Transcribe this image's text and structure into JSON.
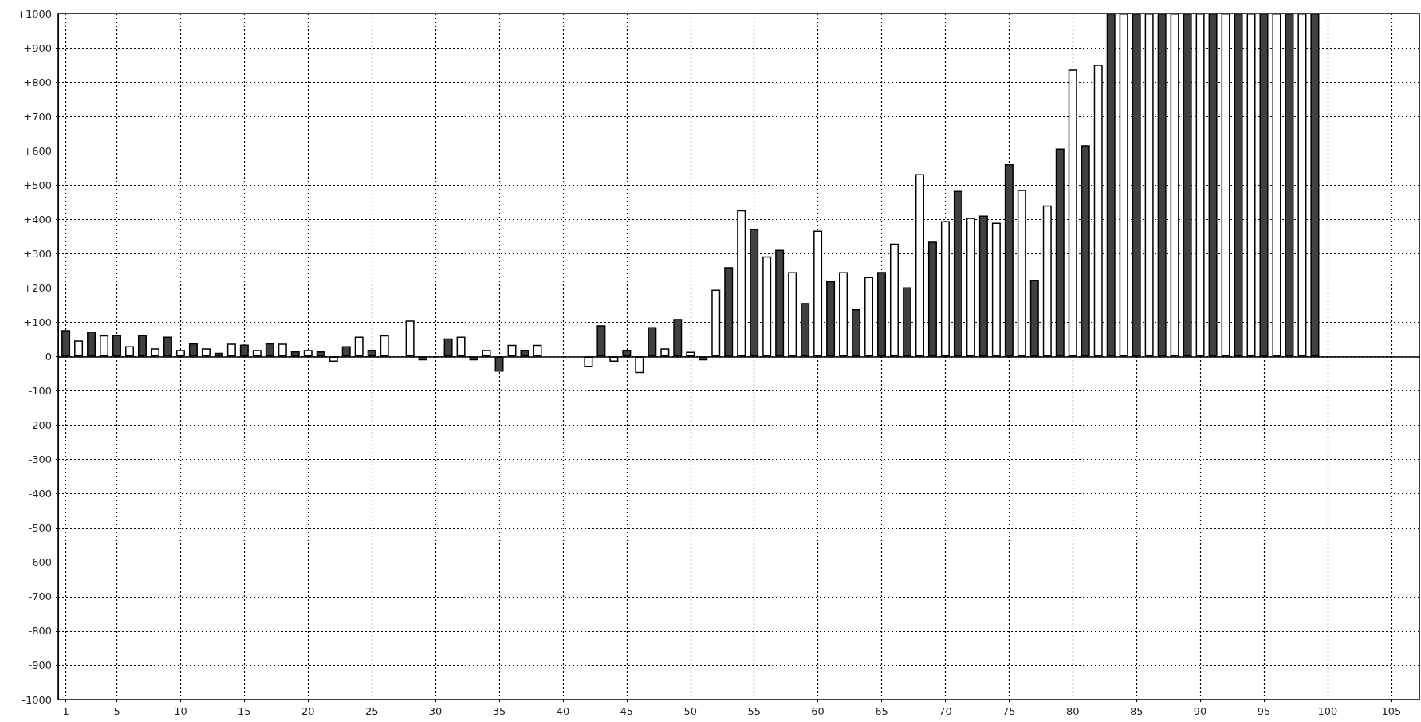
{
  "chart_data": {
    "type": "bar",
    "x": [
      1,
      2,
      3,
      4,
      5,
      6,
      7,
      8,
      9,
      10,
      11,
      12,
      13,
      14,
      15,
      16,
      17,
      18,
      19,
      20,
      21,
      22,
      23,
      24,
      25,
      26,
      27,
      28,
      29,
      30,
      31,
      32,
      33,
      34,
      35,
      36,
      37,
      38,
      39,
      40,
      41,
      42,
      43,
      44,
      45,
      46,
      47,
      48,
      49,
      50,
      51,
      52,
      53,
      54,
      55,
      56,
      57,
      58,
      59,
      60,
      61,
      62,
      63,
      64,
      65,
      66,
      67,
      68,
      69,
      70,
      71,
      72,
      73,
      74,
      75,
      76,
      77,
      78,
      79,
      80,
      81,
      82,
      83,
      84,
      85,
      86,
      87,
      88,
      89,
      90,
      91,
      92,
      93,
      94,
      95,
      96,
      97,
      98,
      99
    ],
    "values": [
      77,
      47,
      73,
      62,
      63,
      30,
      63,
      24,
      58,
      19,
      39,
      24,
      11,
      38,
      35,
      19,
      39,
      38,
      15,
      19,
      15,
      -15,
      30,
      58,
      20,
      62,
      null,
      105,
      -11,
      null,
      53,
      58,
      -11,
      19,
      -44,
      34,
      20,
      34,
      null,
      null,
      null,
      -30,
      91,
      -15,
      20,
      -48,
      86,
      24,
      110,
      14,
      -11,
      195,
      261,
      427,
      373,
      292,
      311,
      246,
      156,
      367,
      220,
      246,
      138,
      232,
      247,
      329,
      202,
      532,
      335,
      395,
      483,
      405,
      411,
      390,
      561,
      486,
      224,
      441,
      606,
      837,
      616,
      851,
      1000,
      1000,
      1000,
      1000,
      1000,
      1000,
      1000,
      1000,
      1000,
      1000,
      1000,
      1000,
      1000,
      1000,
      1000,
      1000,
      1000
    ],
    "colors": [
      "#404040",
      "#ffffff",
      "#404040",
      "#ffffff",
      "#404040",
      "#ffffff",
      "#404040",
      "#ffffff",
      "#404040",
      "#ffffff",
      "#404040",
      "#ffffff",
      "#404040",
      "#ffffff",
      "#404040",
      "#ffffff",
      "#404040",
      "#ffffff",
      "#404040",
      "#ffffff",
      "#404040",
      "#ffffff",
      "#404040",
      "#ffffff",
      "#404040",
      "#ffffff",
      "#404040",
      "#ffffff",
      "#404040",
      "#ffffff",
      "#404040",
      "#ffffff",
      "#404040",
      "#ffffff",
      "#404040",
      "#ffffff",
      "#404040",
      "#ffffff",
      "#404040",
      "#ffffff",
      "#404040",
      "#ffffff",
      "#404040",
      "#ffffff",
      "#404040",
      "#ffffff",
      "#404040",
      "#ffffff",
      "#404040",
      "#ffffff",
      "#404040",
      "#ffffff",
      "#404040",
      "#ffffff",
      "#404040",
      "#ffffff",
      "#404040",
      "#ffffff",
      "#404040",
      "#ffffff",
      "#404040",
      "#ffffff",
      "#404040",
      "#ffffff",
      "#404040",
      "#ffffff",
      "#404040",
      "#ffffff",
      "#404040",
      "#ffffff",
      "#404040",
      "#ffffff",
      "#404040",
      "#ffffff",
      "#404040",
      "#ffffff",
      "#404040",
      "#ffffff",
      "#404040",
      "#ffffff",
      "#404040",
      "#ffffff",
      "#404040",
      "#ffffff",
      "#404040",
      "#ffffff",
      "#404040",
      "#ffffff",
      "#404040",
      "#ffffff",
      "#404040",
      "#ffffff",
      "#404040",
      "#ffffff",
      "#404040",
      "#ffffff",
      "#404040",
      "#ffffff",
      "#404040"
    ],
    "xlim": [
      0.4,
      107.2
    ],
    "xticks": [
      1,
      5,
      10,
      15,
      20,
      25,
      30,
      35,
      40,
      45,
      50,
      55,
      60,
      65,
      70,
      75,
      80,
      85,
      90,
      95,
      100,
      105
    ],
    "ylim": [
      -1000,
      1000
    ],
    "yticks": [
      -1000,
      -900,
      -800,
      -700,
      -600,
      -500,
      -400,
      -300,
      -200,
      -100,
      0,
      {
        "value": 100,
        "label": "+100"
      },
      {
        "value": 200,
        "label": "+200"
      },
      {
        "value": 300,
        "label": "+300"
      },
      {
        "value": 400,
        "label": "+400"
      },
      {
        "value": 500,
        "label": "+500"
      },
      {
        "value": 600,
        "label": "+600"
      },
      {
        "value": 700,
        "label": "+700"
      },
      {
        "value": 800,
        "label": "+800"
      },
      {
        "value": 900,
        "label": "+900"
      },
      {
        "value": 1000,
        "label": "+1000"
      }
    ],
    "grid": true
  }
}
